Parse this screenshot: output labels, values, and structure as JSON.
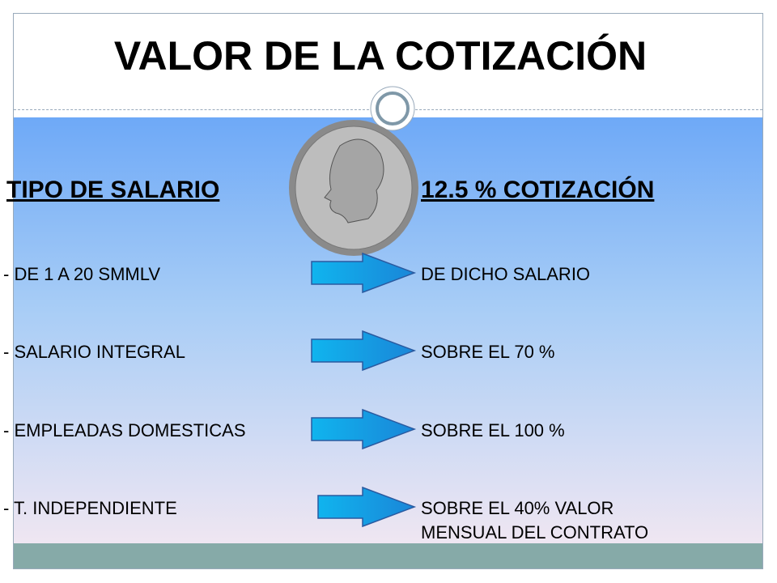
{
  "title": "VALOR DE LA COTIZACIÓN",
  "headers": {
    "left": "TIPO DE SALARIO",
    "right": "12.5 % COTIZACIÓN"
  },
  "rows": [
    {
      "left": "- DE 1 A 20 SMMLV",
      "right": [
        "DE DICHO SALARIO"
      ]
    },
    {
      "left": "- SALARIO INTEGRAL",
      "right": [
        "SOBRE EL 70 %"
      ]
    },
    {
      "left": "- EMPLEADAS DOMESTICAS",
      "right": [
        "SOBRE EL 100 %"
      ]
    },
    {
      "left": "- T. INDEPENDIENTE",
      "right": [
        "SOBRE EL 40% VALOR",
        "MENSUAL DEL CONTRATO"
      ]
    }
  ]
}
